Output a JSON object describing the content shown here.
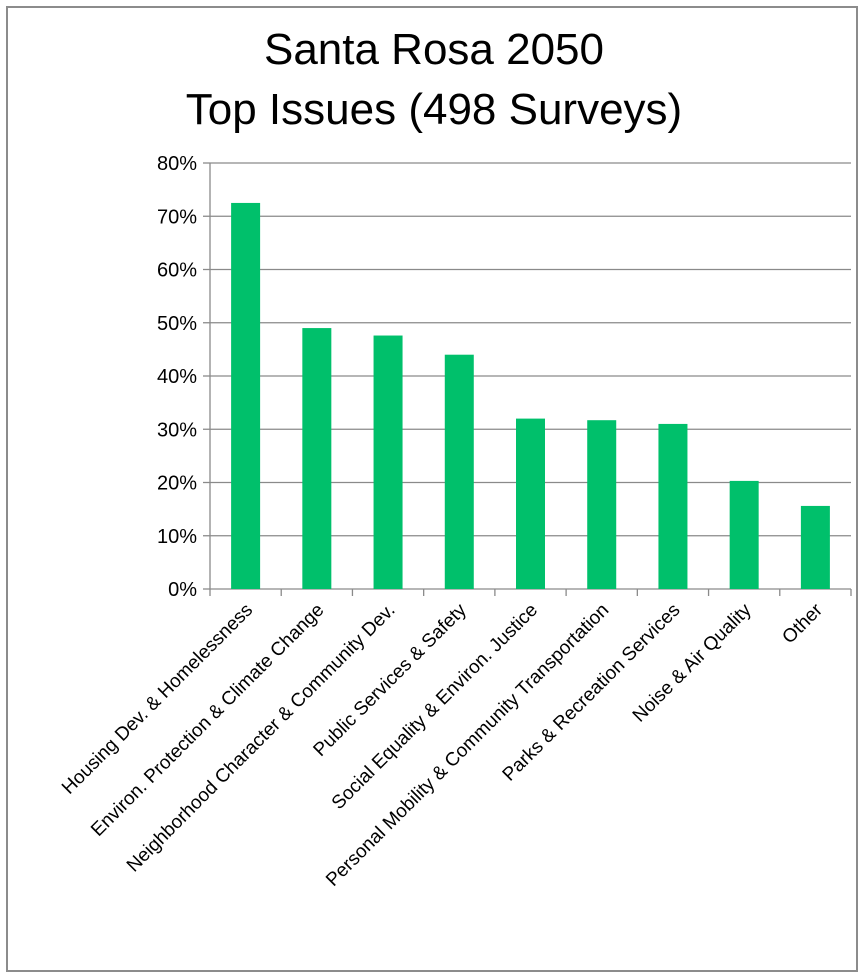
{
  "chart_data": {
    "type": "bar",
    "title": "Santa Rosa 2050",
    "subtitle": "Top Issues (498 Surveys)",
    "xlabel": "",
    "ylabel": "",
    "ylim": [
      0,
      80
    ],
    "yticks": [
      "0%",
      "10%",
      "20%",
      "30%",
      "40%",
      "50%",
      "60%",
      "70%",
      "80%"
    ],
    "grid": true,
    "bar_color": "#00C06B",
    "categories": [
      "Housing Dev. & Homelessness",
      "Environ. Protection & Climate Change",
      "Neighborhood Character & Community Dev.",
      "Public Services & Safety",
      "Social Equality & Environ. Justice",
      "Personal Mobility & Community Transportation",
      "Parks & Recreation Services",
      "Noise & Air Quality",
      "Other"
    ],
    "values": [
      72.5,
      49,
      47.6,
      44,
      32,
      31.7,
      31,
      20.3,
      15.6
    ]
  }
}
